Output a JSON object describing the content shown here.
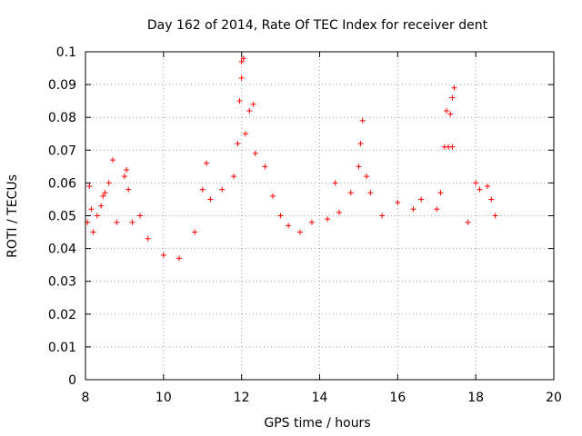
{
  "colors": {
    "series": "#ff0000",
    "axis": "#000000",
    "grid": "#a0a0a0",
    "background": "#ffffff"
  },
  "chart_data": {
    "type": "scatter",
    "title": "Day 162 of 2014, Rate Of TEC Index for receiver dent",
    "xlabel": "GPS time / hours",
    "ylabel": "ROTI / TECUs",
    "xlim": [
      8,
      20
    ],
    "ylim": [
      0,
      0.1
    ],
    "xticks": [
      "8",
      "10",
      "12",
      "14",
      "16",
      "18",
      "20"
    ],
    "yticks": [
      "0",
      "0.01",
      "0.02",
      "0.03",
      "0.04",
      "0.05",
      "0.06",
      "0.07",
      "0.08",
      "0.09",
      "0.1"
    ],
    "grid": true,
    "marker": "plus",
    "series": [
      {
        "name": "ROTI",
        "points": [
          [
            8.05,
            0.048
          ],
          [
            8.1,
            0.059
          ],
          [
            8.15,
            0.052
          ],
          [
            8.2,
            0.045
          ],
          [
            8.3,
            0.05
          ],
          [
            8.4,
            0.053
          ],
          [
            8.45,
            0.056
          ],
          [
            8.5,
            0.057
          ],
          [
            8.6,
            0.06
          ],
          [
            8.7,
            0.067
          ],
          [
            8.8,
            0.048
          ],
          [
            9.0,
            0.062
          ],
          [
            9.05,
            0.064
          ],
          [
            9.1,
            0.058
          ],
          [
            9.2,
            0.048
          ],
          [
            9.4,
            0.05
          ],
          [
            9.6,
            0.043
          ],
          [
            10.0,
            0.038
          ],
          [
            10.4,
            0.037
          ],
          [
            10.8,
            0.045
          ],
          [
            11.0,
            0.058
          ],
          [
            11.1,
            0.066
          ],
          [
            11.2,
            0.055
          ],
          [
            11.5,
            0.058
          ],
          [
            11.8,
            0.062
          ],
          [
            11.9,
            0.072
          ],
          [
            11.95,
            0.085
          ],
          [
            12.0,
            0.097
          ],
          [
            12.05,
            0.098
          ],
          [
            12.0,
            0.092
          ],
          [
            12.1,
            0.075
          ],
          [
            12.2,
            0.082
          ],
          [
            12.3,
            0.084
          ],
          [
            12.35,
            0.069
          ],
          [
            12.6,
            0.065
          ],
          [
            12.8,
            0.056
          ],
          [
            13.0,
            0.05
          ],
          [
            13.2,
            0.047
          ],
          [
            13.5,
            0.045
          ],
          [
            13.8,
            0.048
          ],
          [
            14.2,
            0.049
          ],
          [
            14.4,
            0.06
          ],
          [
            14.5,
            0.051
          ],
          [
            14.8,
            0.057
          ],
          [
            15.0,
            0.065
          ],
          [
            15.05,
            0.072
          ],
          [
            15.1,
            0.079
          ],
          [
            15.2,
            0.062
          ],
          [
            15.3,
            0.057
          ],
          [
            15.6,
            0.05
          ],
          [
            16.0,
            0.054
          ],
          [
            16.4,
            0.052
          ],
          [
            16.6,
            0.055
          ],
          [
            17.0,
            0.052
          ],
          [
            17.1,
            0.057
          ],
          [
            17.2,
            0.071
          ],
          [
            17.3,
            0.071
          ],
          [
            17.4,
            0.071
          ],
          [
            17.25,
            0.082
          ],
          [
            17.35,
            0.081
          ],
          [
            17.4,
            0.086
          ],
          [
            17.45,
            0.089
          ],
          [
            17.8,
            0.048
          ],
          [
            18.0,
            0.06
          ],
          [
            18.1,
            0.058
          ],
          [
            18.3,
            0.059
          ],
          [
            18.4,
            0.055
          ],
          [
            18.5,
            0.05
          ]
        ]
      }
    ]
  }
}
